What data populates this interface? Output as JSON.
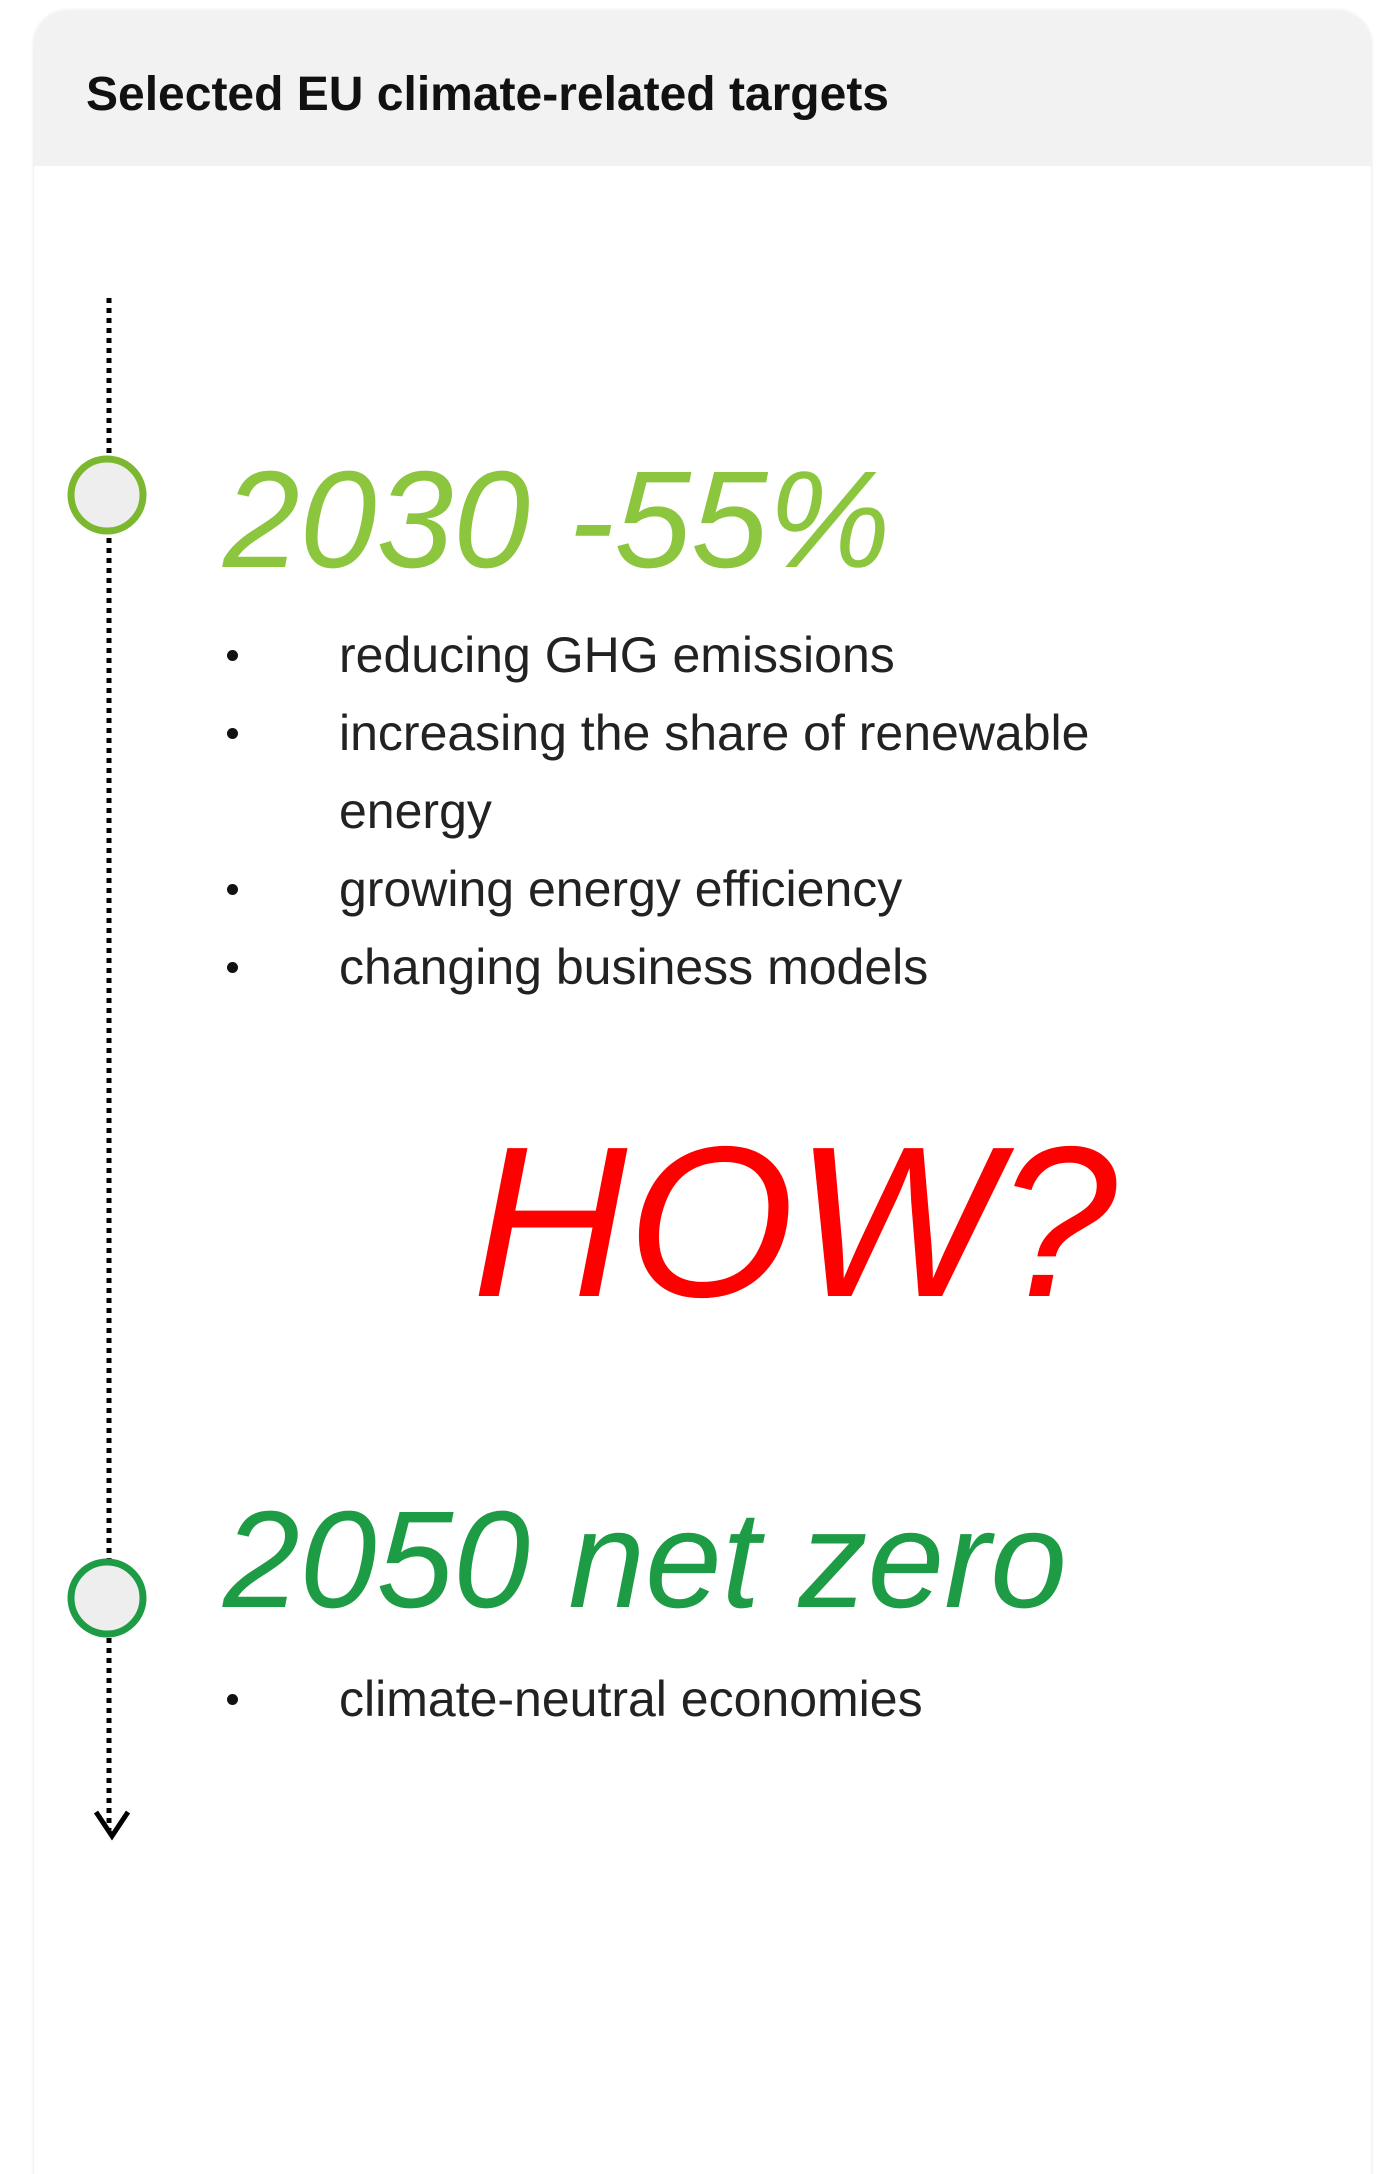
{
  "header": {
    "title": "Selected EU climate-related targets"
  },
  "items": [
    {
      "heading": "2030 -55%",
      "bullets": [
        "reducing GHG emissions",
        "increasing the share of renewable energy",
        "growing energy efficiency",
        "changing business models"
      ]
    },
    {
      "heading": "2050 net zero",
      "bullets": [
        "climate-neutral economies"
      ]
    }
  ],
  "question": "HOW?"
}
